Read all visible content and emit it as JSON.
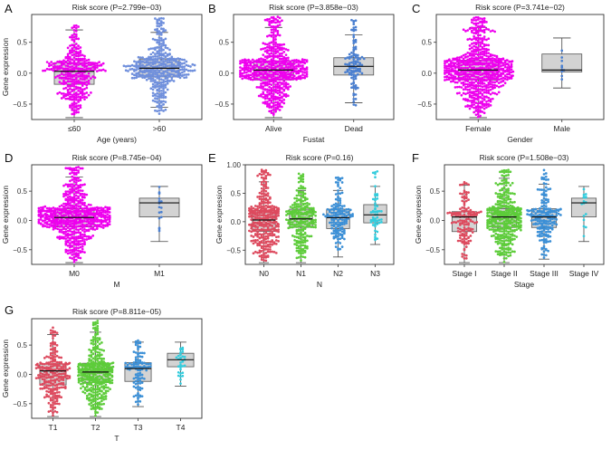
{
  "figure": {
    "colors": {
      "magenta": "#ee00ee",
      "blue": "#6f8fdc",
      "mid_blue": "#4a7fd0",
      "red": "#dd4a5e",
      "green": "#5dcc3a",
      "med_blue": "#3b8fd6",
      "cyan": "#33ccdd",
      "box_fill": "#d3d3d3",
      "axis": "#333333"
    }
  },
  "chart_data": [
    {
      "panel": "A",
      "type": "box+beeswarm",
      "title": "Risk score (P=2.799e−03)",
      "xlabel": "Age (years)",
      "ylabel": "Gene expression",
      "ylim": [
        -0.75,
        0.95
      ],
      "yticks": [
        -0.5,
        0.0,
        0.5
      ],
      "ytick_labels": [
        "−0.5",
        "0.0",
        "0.5"
      ],
      "categories": [
        "≤60",
        ">60"
      ],
      "groups": [
        {
          "name": "≤60",
          "color": "magenta",
          "n": 380,
          "min": -0.72,
          "q1": -0.18,
          "median": 0.03,
          "q3": 0.17,
          "max": 0.77,
          "whisker_low": -0.72,
          "whisker_high": 0.7
        },
        {
          "name": ">60",
          "color": "blue",
          "n": 430,
          "min": -0.68,
          "q1": -0.06,
          "median": 0.08,
          "q3": 0.23,
          "max": 0.92,
          "whisker_low": -0.55,
          "whisker_high": 0.66
        }
      ]
    },
    {
      "panel": "B",
      "type": "box+beeswarm",
      "title": "Risk score (P=3.858e−03)",
      "xlabel": "Fustat",
      "ylabel": "",
      "ylim": [
        -0.75,
        0.95
      ],
      "yticks": [
        -0.5,
        0.0,
        0.5
      ],
      "ytick_labels": [
        "−0.5",
        "0.0",
        "0.5"
      ],
      "categories": [
        "Alive",
        "Dead"
      ],
      "groups": [
        {
          "name": "Alive",
          "color": "magenta",
          "n": 620,
          "min": -0.72,
          "q1": -0.11,
          "median": 0.05,
          "q3": 0.2,
          "max": 0.92,
          "whisker_low": -0.72,
          "whisker_high": 0.74
        },
        {
          "name": "Dead",
          "color": "mid_blue",
          "n": 110,
          "min": -0.62,
          "q1": -0.03,
          "median": 0.11,
          "q3": 0.25,
          "max": 0.92,
          "whisker_low": -0.48,
          "whisker_high": 0.62
        }
      ]
    },
    {
      "panel": "C",
      "type": "box+beeswarm",
      "title": "Risk score (P=3.741e−02)",
      "xlabel": "Gender",
      "ylabel": "",
      "ylim": [
        -0.75,
        0.95
      ],
      "yticks": [
        -0.5,
        0.0,
        0.5
      ],
      "ytick_labels": [
        "−0.5",
        "0.0",
        "0.5"
      ],
      "categories": [
        "Female",
        "Male"
      ],
      "groups": [
        {
          "name": "Female",
          "color": "magenta",
          "n": 720,
          "min": -0.72,
          "q1": -0.11,
          "median": 0.05,
          "q3": 0.21,
          "max": 0.92,
          "whisker_low": -0.72,
          "whisker_high": 0.74
        },
        {
          "name": "Male",
          "color": "mid_blue",
          "n": 10,
          "min": -0.24,
          "q1": 0.02,
          "median": 0.05,
          "q3": 0.31,
          "max": 0.57,
          "whisker_low": -0.24,
          "whisker_high": 0.57
        }
      ]
    },
    {
      "panel": "D",
      "type": "box+beeswarm",
      "title": "Risk score (P=8.745e−04)",
      "xlabel": "M",
      "ylabel": "Gene expression",
      "ylim": [
        -0.75,
        0.95
      ],
      "yticks": [
        -0.5,
        0.0,
        0.5
      ],
      "ytick_labels": [
        "−0.5",
        "0.0",
        "0.5"
      ],
      "categories": [
        "M0",
        "M1"
      ],
      "groups": [
        {
          "name": "M0",
          "color": "magenta",
          "n": 680,
          "min": -0.72,
          "q1": -0.11,
          "median": 0.05,
          "q3": 0.2,
          "max": 0.92,
          "whisker_low": -0.72,
          "whisker_high": 0.74
        },
        {
          "name": "M1",
          "color": "mid_blue",
          "n": 16,
          "min": -0.36,
          "q1": 0.06,
          "median": 0.3,
          "q3": 0.38,
          "max": 0.58,
          "whisker_low": -0.36,
          "whisker_high": 0.58
        }
      ]
    },
    {
      "panel": "E",
      "type": "box+beeswarm",
      "title": "Risk score (P=0.16)",
      "xlabel": "N",
      "ylabel": "Gene expression",
      "ylim": [
        -0.75,
        1.0
      ],
      "yticks": [
        -0.5,
        0.0,
        0.5,
        1.0
      ],
      "ytick_labels": [
        "−0.5",
        "0.0",
        "0.5",
        "1.00"
      ],
      "categories": [
        "N0",
        "N1",
        "N2",
        "N3"
      ],
      "groups": [
        {
          "name": "N0",
          "color": "red",
          "n": 360,
          "min": -0.72,
          "q1": -0.17,
          "median": 0.03,
          "q3": 0.2,
          "max": 0.92,
          "whisker_low": -0.72,
          "whisker_high": 0.7
        },
        {
          "name": "N1",
          "color": "green",
          "n": 260,
          "min": -0.72,
          "q1": -0.1,
          "median": 0.05,
          "q3": 0.22,
          "max": 0.84,
          "whisker_low": -0.72,
          "whisker_high": 0.55
        },
        {
          "name": "N2",
          "color": "med_blue",
          "n": 160,
          "min": -0.62,
          "q1": -0.12,
          "median": 0.07,
          "q3": 0.22,
          "max": 0.78,
          "whisker_low": -0.62,
          "whisker_high": 0.55
        },
        {
          "name": "N3",
          "color": "cyan",
          "n": 55,
          "min": -0.4,
          "q1": -0.02,
          "median": 0.12,
          "q3": 0.3,
          "max": 0.9,
          "whisker_low": -0.4,
          "whisker_high": 0.62
        }
      ]
    },
    {
      "panel": "F",
      "type": "box+beeswarm",
      "title": "Risk score (P=1.508e−03)",
      "xlabel": "Stage",
      "ylabel": "Gene expression",
      "ylim": [
        -0.75,
        0.95
      ],
      "yticks": [
        -0.5,
        0.0,
        0.5
      ],
      "ytick_labels": [
        "−0.5",
        "0.0",
        "0.5"
      ],
      "categories": [
        "Stage I",
        "Stage II",
        "Stage III",
        "Stage IV"
      ],
      "groups": [
        {
          "name": "Stage I",
          "color": "red",
          "n": 150,
          "min": -0.72,
          "q1": -0.19,
          "median": 0.06,
          "q3": 0.15,
          "max": 0.7,
          "whisker_low": -0.72,
          "whisker_high": 0.6
        },
        {
          "name": "Stage II",
          "color": "green",
          "n": 420,
          "min": -0.72,
          "q1": -0.12,
          "median": 0.06,
          "q3": 0.2,
          "max": 0.88,
          "whisker_low": -0.72,
          "whisker_high": 0.72
        },
        {
          "name": "Stage III",
          "color": "med_blue",
          "n": 200,
          "min": -0.66,
          "q1": -0.12,
          "median": 0.06,
          "q3": 0.2,
          "max": 0.87,
          "whisker_low": -0.66,
          "whisker_high": 0.62
        },
        {
          "name": "Stage IV",
          "color": "cyan",
          "n": 18,
          "min": -0.36,
          "q1": 0.06,
          "median": 0.3,
          "q3": 0.38,
          "max": 0.58,
          "whisker_low": -0.36,
          "whisker_high": 0.58
        }
      ]
    },
    {
      "panel": "G",
      "type": "box+beeswarm",
      "title": "Risk score (P=8.811e−05)",
      "xlabel": "T",
      "ylabel": "Gene expression",
      "ylim": [
        -0.75,
        0.95
      ],
      "yticks": [
        -0.5,
        0.0,
        0.5
      ],
      "ytick_labels": [
        "−0.5",
        "0.0",
        "0.5"
      ],
      "categories": [
        "T1",
        "T2",
        "T3",
        "T4"
      ],
      "groups": [
        {
          "name": "T1",
          "color": "red",
          "n": 260,
          "min": -0.72,
          "q1": -0.18,
          "median": 0.06,
          "q3": 0.18,
          "max": 0.82,
          "whisker_low": -0.72,
          "whisker_high": 0.68
        },
        {
          "name": "T2",
          "color": "green",
          "n": 440,
          "min": -0.72,
          "q1": -0.14,
          "median": 0.04,
          "q3": 0.19,
          "max": 0.92,
          "whisker_low": -0.72,
          "whisker_high": 0.72
        },
        {
          "name": "T3",
          "color": "med_blue",
          "n": 110,
          "min": -0.55,
          "q1": -0.12,
          "median": 0.1,
          "q3": 0.2,
          "max": 0.6,
          "whisker_low": -0.55,
          "whisker_high": 0.55
        },
        {
          "name": "T4",
          "color": "cyan",
          "n": 32,
          "min": -0.38,
          "q1": 0.13,
          "median": 0.25,
          "q3": 0.36,
          "max": 0.6,
          "whisker_low": -0.2,
          "whisker_high": 0.55
        }
      ]
    }
  ]
}
